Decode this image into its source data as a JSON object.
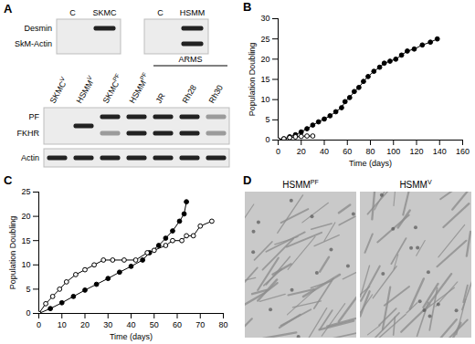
{
  "figure": {
    "A": {
      "label": "A",
      "top_blots": [
        {
          "columns": [
            "C",
            "SKMC"
          ]
        },
        {
          "columns": [
            "C",
            "HSMM"
          ]
        }
      ],
      "top_rows": [
        "Desmin",
        "SkM-Actin"
      ],
      "bottom_blot": {
        "columns": [
          {
            "text": "SKMC",
            "sup": "V"
          },
          {
            "text": "HSMM",
            "sup": "V"
          },
          {
            "text": "SKMC",
            "sup": "PF"
          },
          {
            "text": "HSMM",
            "sup": "PF"
          },
          {
            "text": "JR",
            "group": "ARMS"
          },
          {
            "text": "Rh28",
            "group": "ARMS"
          },
          {
            "text": "Rh30",
            "group": "ARMS"
          }
        ],
        "rows": [
          "PF",
          "FKHR",
          "Actin"
        ]
      }
    },
    "D": {
      "label": "D",
      "images": [
        {
          "text": "HSMM",
          "sup": "PF"
        },
        {
          "text": "HSMM",
          "sup": "V"
        }
      ]
    }
  },
  "chart_data": [
    {
      "type": "line",
      "title": "B",
      "x_label": "Time (days)",
      "y_label": "Population Doubling",
      "xlim": [
        0,
        160
      ],
      "xticks": [
        0,
        20,
        40,
        60,
        80,
        100,
        120,
        140,
        160
      ],
      "ylim": [
        0,
        30
      ],
      "yticks": [
        0,
        5,
        10,
        15,
        20,
        25,
        30
      ],
      "series": [
        {
          "marker": "filled",
          "color": "#000000",
          "x": [
            0,
            5,
            10,
            15,
            20,
            25,
            30,
            35,
            40,
            45,
            50,
            55,
            58,
            62,
            66,
            70,
            74,
            78,
            83,
            88,
            92,
            97,
            102,
            107,
            112,
            118,
            125,
            132,
            138
          ],
          "values": [
            0,
            0.3,
            0.8,
            1.3,
            2,
            2.8,
            3.7,
            4.5,
            5.2,
            6,
            7,
            8,
            9.5,
            10.5,
            12,
            13,
            14.5,
            15.7,
            17,
            18,
            19,
            19.5,
            20,
            21,
            22,
            22.5,
            23.5,
            24.2,
            25
          ]
        },
        {
          "marker": "open",
          "color": "#000000",
          "x": [
            0,
            5,
            10,
            15,
            20,
            25,
            30
          ],
          "values": [
            0,
            0.3,
            0.6,
            0.8,
            0.9,
            1,
            1
          ]
        }
      ]
    },
    {
      "type": "line",
      "title": "C",
      "x_label": "Time (days)",
      "y_label": "Population Doubling",
      "xlim": [
        0,
        80
      ],
      "xticks": [
        0,
        10,
        20,
        30,
        40,
        50,
        60,
        70,
        80
      ],
      "ylim": [
        0,
        25
      ],
      "yticks": [
        0,
        5,
        10,
        15,
        20,
        25
      ],
      "series": [
        {
          "marker": "filled",
          "color": "#000000",
          "x": [
            0,
            5,
            10,
            15,
            20,
            25,
            30,
            35,
            40,
            45,
            48,
            52,
            55,
            58,
            61,
            63,
            64
          ],
          "values": [
            0,
            1,
            2.2,
            3.5,
            4.8,
            6,
            7.2,
            8.5,
            9.7,
            11,
            12.5,
            14,
            15.5,
            17,
            19,
            20.5,
            23
          ]
        },
        {
          "marker": "open",
          "color": "#000000",
          "x": [
            0,
            3,
            6,
            9,
            12,
            16,
            20,
            24,
            28,
            32,
            37,
            42,
            47,
            50,
            55,
            58,
            62,
            64,
            67,
            70,
            75
          ],
          "values": [
            0,
            2,
            3.5,
            5,
            6.5,
            8,
            9,
            10,
            11,
            11,
            11,
            11,
            12.5,
            13,
            14,
            15,
            15,
            16,
            16,
            18,
            19
          ]
        }
      ]
    }
  ]
}
